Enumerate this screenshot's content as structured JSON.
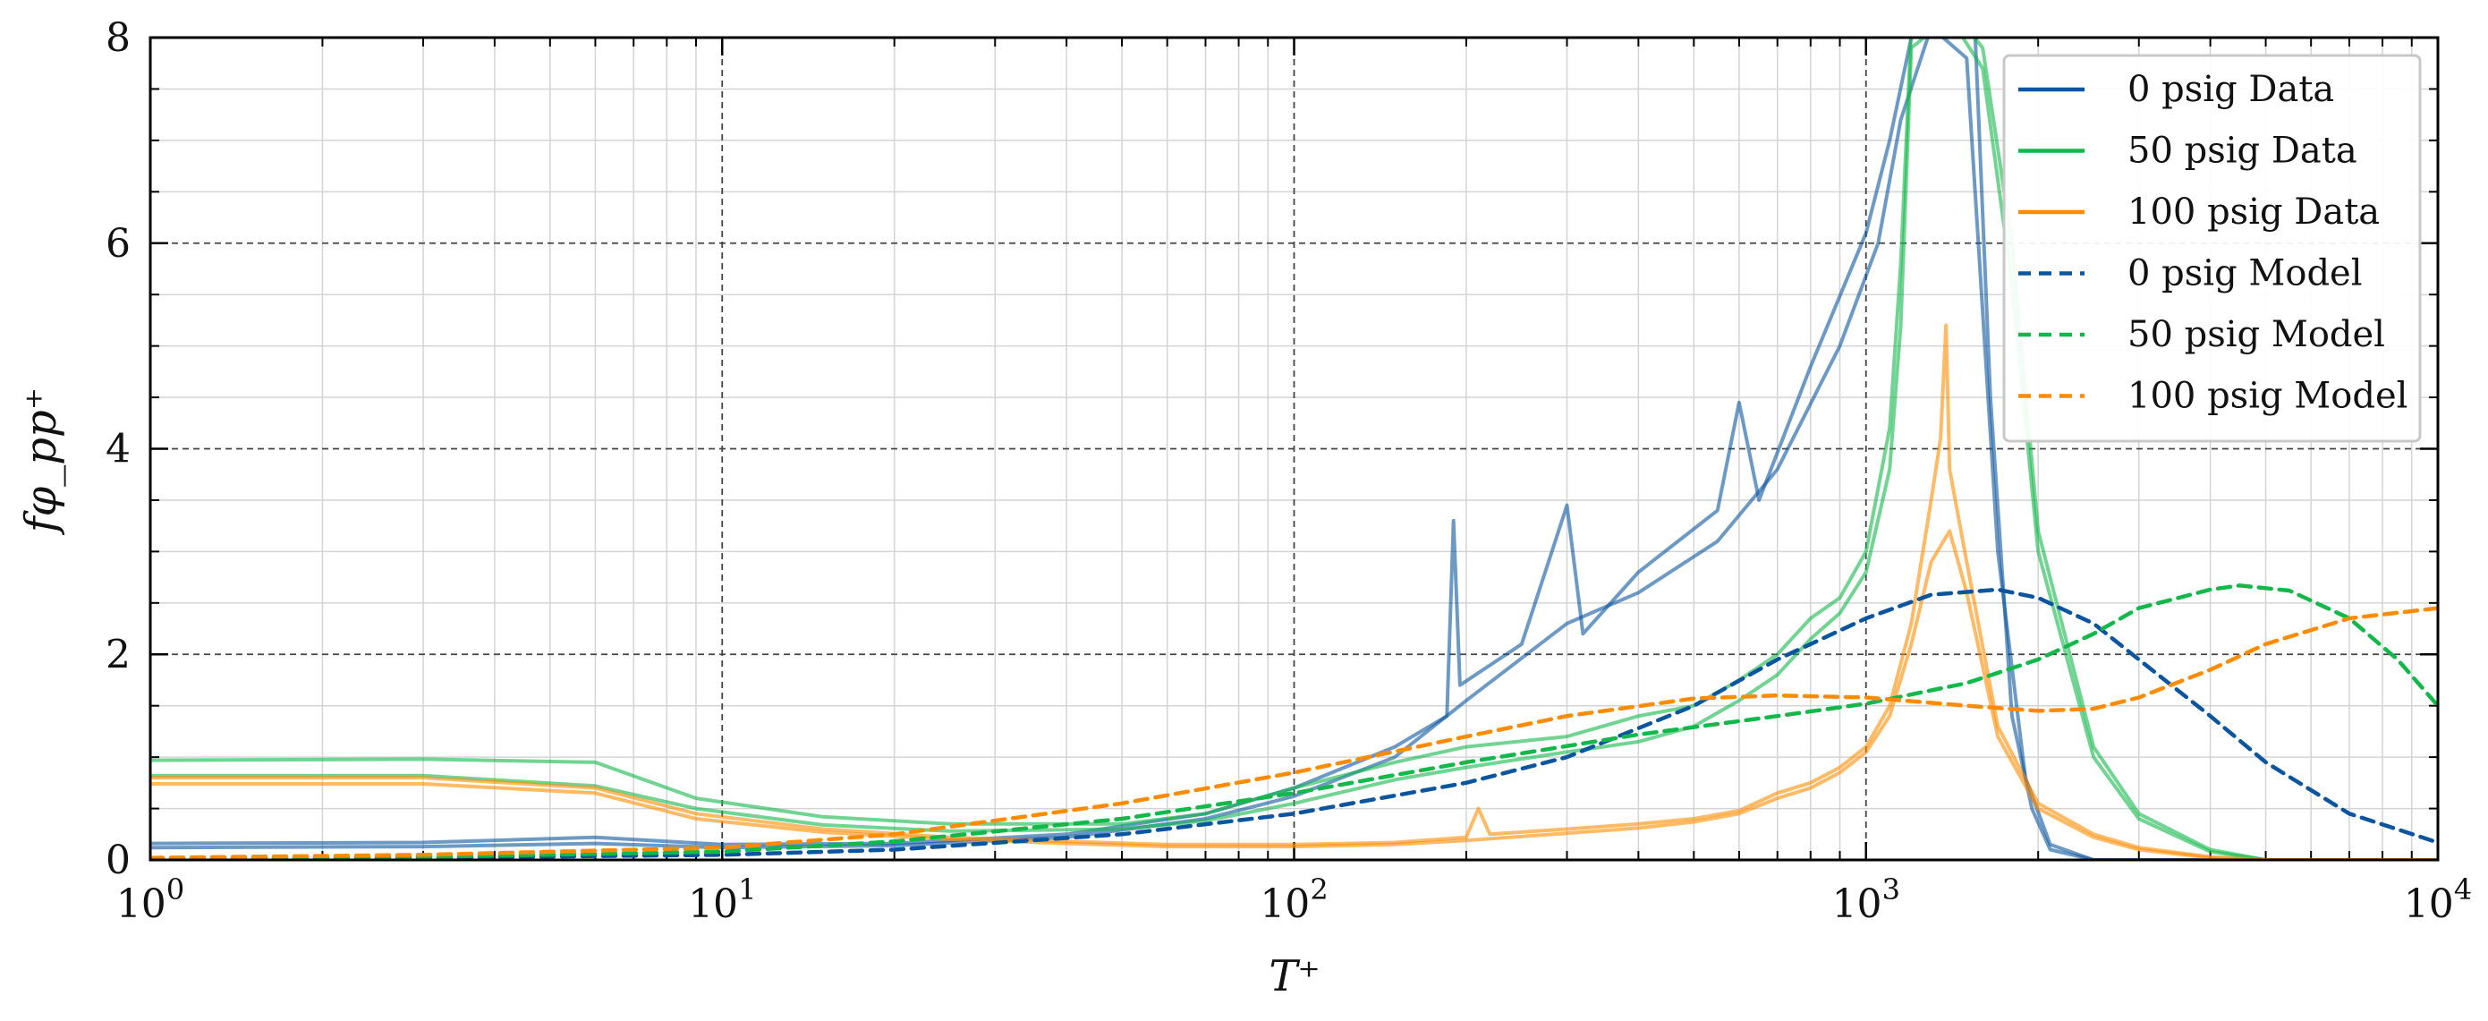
{
  "chart_data": {
    "type": "line",
    "xlabel": "T⁺",
    "ylabel": "fφ_pp⁺",
    "xscale": "log",
    "xlim": [
      1,
      10000
    ],
    "ylim": [
      0,
      8
    ],
    "grid": true,
    "legend_position": "top-right",
    "x_tick_labels": [
      {
        "value": 1,
        "base": "10",
        "exp": "0"
      },
      {
        "value": 10,
        "base": "10",
        "exp": "1"
      },
      {
        "value": 100,
        "base": "10",
        "exp": "2"
      },
      {
        "value": 1000,
        "base": "10",
        "exp": "3"
      },
      {
        "value": 10000,
        "base": "10",
        "exp": "4"
      }
    ],
    "y_ticks": [
      0,
      2,
      4,
      6,
      8
    ],
    "colors": {
      "psig0": "#0b559f",
      "psig50": "#12b84a",
      "psig100": "#ff8c00"
    },
    "series": [
      {
        "name": "0 psig Data",
        "color": "#0b559f",
        "style": "solid",
        "legend": true,
        "points": [
          [
            1,
            0.16
          ],
          [
            3,
            0.17
          ],
          [
            6,
            0.22
          ],
          [
            10,
            0.15
          ],
          [
            20,
            0.16
          ],
          [
            40,
            0.25
          ],
          [
            70,
            0.45
          ],
          [
            100,
            0.7
          ],
          [
            150,
            1.1
          ],
          [
            185,
            1.4
          ],
          [
            190,
            3.3
          ],
          [
            195,
            1.7
          ],
          [
            250,
            2.1
          ],
          [
            300,
            3.45
          ],
          [
            320,
            2.2
          ],
          [
            400,
            2.8
          ],
          [
            550,
            3.4
          ],
          [
            600,
            4.45
          ],
          [
            650,
            3.5
          ],
          [
            800,
            4.8
          ],
          [
            1000,
            6.1
          ],
          [
            1100,
            7.0
          ],
          [
            1200,
            8.0
          ],
          [
            1350,
            8.2
          ],
          [
            1550,
            8.1
          ],
          [
            1650,
            4.5
          ],
          [
            1800,
            1.4
          ],
          [
            1950,
            0.5
          ],
          [
            2100,
            0.1
          ],
          [
            2500,
            0.0
          ],
          [
            10000,
            0.0
          ]
        ]
      },
      {
        "name": "0 psig Data (repeat)",
        "color": "#0b559f",
        "style": "solid",
        "legend": false,
        "points": [
          [
            1,
            0.12
          ],
          [
            3,
            0.13
          ],
          [
            6,
            0.16
          ],
          [
            10,
            0.12
          ],
          [
            20,
            0.14
          ],
          [
            40,
            0.22
          ],
          [
            70,
            0.4
          ],
          [
            100,
            0.62
          ],
          [
            150,
            1.0
          ],
          [
            200,
            1.55
          ],
          [
            300,
            2.3
          ],
          [
            400,
            2.6
          ],
          [
            550,
            3.1
          ],
          [
            700,
            3.8
          ],
          [
            900,
            5.0
          ],
          [
            1050,
            6.0
          ],
          [
            1150,
            7.2
          ],
          [
            1300,
            8.1
          ],
          [
            1500,
            7.8
          ],
          [
            1700,
            3.0
          ],
          [
            1900,
            0.8
          ],
          [
            2100,
            0.15
          ],
          [
            2500,
            0.0
          ],
          [
            10000,
            0.0
          ]
        ]
      },
      {
        "name": "50 psig Data",
        "color": "#12b84a",
        "style": "solid",
        "legend": true,
        "points": [
          [
            1,
            0.97
          ],
          [
            3,
            0.98
          ],
          [
            6,
            0.95
          ],
          [
            9,
            0.6
          ],
          [
            15,
            0.42
          ],
          [
            25,
            0.35
          ],
          [
            50,
            0.35
          ],
          [
            70,
            0.45
          ],
          [
            100,
            0.7
          ],
          [
            150,
            0.95
          ],
          [
            200,
            1.1
          ],
          [
            300,
            1.2
          ],
          [
            400,
            1.4
          ],
          [
            500,
            1.5
          ],
          [
            600,
            1.75
          ],
          [
            700,
            2.0
          ],
          [
            800,
            2.35
          ],
          [
            900,
            2.55
          ],
          [
            1000,
            3.0
          ],
          [
            1100,
            4.2
          ],
          [
            1150,
            5.8
          ],
          [
            1200,
            8.1
          ],
          [
            1400,
            8.3
          ],
          [
            1600,
            7.9
          ],
          [
            1800,
            6.0
          ],
          [
            2000,
            3.2
          ],
          [
            2500,
            1.1
          ],
          [
            3000,
            0.45
          ],
          [
            4000,
            0.1
          ],
          [
            5000,
            0.0
          ],
          [
            10000,
            0.0
          ]
        ]
      },
      {
        "name": "50 psig Data (repeat)",
        "color": "#12b84a",
        "style": "solid",
        "legend": false,
        "points": [
          [
            1,
            0.82
          ],
          [
            3,
            0.82
          ],
          [
            6,
            0.72
          ],
          [
            9,
            0.5
          ],
          [
            15,
            0.34
          ],
          [
            25,
            0.28
          ],
          [
            50,
            0.3
          ],
          [
            70,
            0.38
          ],
          [
            100,
            0.55
          ],
          [
            150,
            0.78
          ],
          [
            200,
            0.9
          ],
          [
            300,
            1.05
          ],
          [
            400,
            1.15
          ],
          [
            500,
            1.3
          ],
          [
            600,
            1.55
          ],
          [
            700,
            1.8
          ],
          [
            800,
            2.15
          ],
          [
            900,
            2.4
          ],
          [
            1000,
            2.8
          ],
          [
            1100,
            3.8
          ],
          [
            1150,
            5.2
          ],
          [
            1200,
            7.9
          ],
          [
            1400,
            8.2
          ],
          [
            1600,
            7.7
          ],
          [
            1800,
            5.6
          ],
          [
            2000,
            3.0
          ],
          [
            2500,
            1.0
          ],
          [
            3000,
            0.4
          ],
          [
            4000,
            0.08
          ],
          [
            5000,
            0.0
          ],
          [
            10000,
            0.0
          ]
        ]
      },
      {
        "name": "100 psig Data",
        "color": "#ff8c00",
        "style": "solid",
        "legend": true,
        "points": [
          [
            1,
            0.8
          ],
          [
            3,
            0.8
          ],
          [
            6,
            0.7
          ],
          [
            9,
            0.45
          ],
          [
            15,
            0.3
          ],
          [
            25,
            0.22
          ],
          [
            40,
            0.18
          ],
          [
            60,
            0.15
          ],
          [
            100,
            0.15
          ],
          [
            150,
            0.17
          ],
          [
            200,
            0.22
          ],
          [
            210,
            0.5
          ],
          [
            220,
            0.25
          ],
          [
            300,
            0.3
          ],
          [
            400,
            0.35
          ],
          [
            500,
            0.4
          ],
          [
            600,
            0.48
          ],
          [
            700,
            0.65
          ],
          [
            800,
            0.75
          ],
          [
            900,
            0.9
          ],
          [
            1000,
            1.1
          ],
          [
            1100,
            1.5
          ],
          [
            1200,
            2.3
          ],
          [
            1300,
            3.5
          ],
          [
            1350,
            4.1
          ],
          [
            1380,
            5.2
          ],
          [
            1400,
            3.8
          ],
          [
            1500,
            2.9
          ],
          [
            1700,
            1.3
          ],
          [
            2000,
            0.55
          ],
          [
            2500,
            0.25
          ],
          [
            3000,
            0.12
          ],
          [
            4000,
            0.03
          ],
          [
            5000,
            0.0
          ],
          [
            10000,
            0.0
          ]
        ]
      },
      {
        "name": "100 psig Data (repeat)",
        "color": "#ff8c00",
        "style": "solid",
        "legend": false,
        "points": [
          [
            1,
            0.74
          ],
          [
            3,
            0.74
          ],
          [
            6,
            0.65
          ],
          [
            9,
            0.4
          ],
          [
            15,
            0.27
          ],
          [
            25,
            0.2
          ],
          [
            40,
            0.16
          ],
          [
            60,
            0.13
          ],
          [
            100,
            0.13
          ],
          [
            150,
            0.15
          ],
          [
            200,
            0.19
          ],
          [
            300,
            0.26
          ],
          [
            400,
            0.31
          ],
          [
            500,
            0.37
          ],
          [
            600,
            0.45
          ],
          [
            700,
            0.6
          ],
          [
            800,
            0.7
          ],
          [
            900,
            0.85
          ],
          [
            1000,
            1.05
          ],
          [
            1100,
            1.4
          ],
          [
            1200,
            2.1
          ],
          [
            1300,
            2.9
          ],
          [
            1400,
            3.2
          ],
          [
            1500,
            2.6
          ],
          [
            1700,
            1.2
          ],
          [
            2000,
            0.5
          ],
          [
            2500,
            0.22
          ],
          [
            3000,
            0.1
          ],
          [
            4000,
            0.02
          ],
          [
            5000,
            0.0
          ],
          [
            10000,
            0.0
          ]
        ]
      },
      {
        "name": "0 psig Model",
        "color": "#0b559f",
        "style": "dashed",
        "legend": true,
        "points": [
          [
            1,
            0.01
          ],
          [
            3,
            0.02
          ],
          [
            10,
            0.05
          ],
          [
            20,
            0.1
          ],
          [
            50,
            0.25
          ],
          [
            100,
            0.45
          ],
          [
            200,
            0.75
          ],
          [
            300,
            1.0
          ],
          [
            500,
            1.5
          ],
          [
            700,
            1.95
          ],
          [
            1000,
            2.35
          ],
          [
            1300,
            2.58
          ],
          [
            1700,
            2.63
          ],
          [
            2000,
            2.55
          ],
          [
            2500,
            2.3
          ],
          [
            3000,
            1.95
          ],
          [
            4000,
            1.4
          ],
          [
            5000,
            0.95
          ],
          [
            7000,
            0.45
          ],
          [
            10000,
            0.17
          ]
        ]
      },
      {
        "name": "50 psig Model",
        "color": "#12b84a",
        "style": "dashed",
        "legend": true,
        "points": [
          [
            1,
            0.02
          ],
          [
            3,
            0.03
          ],
          [
            10,
            0.08
          ],
          [
            20,
            0.18
          ],
          [
            50,
            0.4
          ],
          [
            100,
            0.65
          ],
          [
            200,
            0.95
          ],
          [
            400,
            1.22
          ],
          [
            700,
            1.4
          ],
          [
            1000,
            1.52
          ],
          [
            1500,
            1.72
          ],
          [
            2000,
            1.95
          ],
          [
            2500,
            2.2
          ],
          [
            3000,
            2.45
          ],
          [
            4000,
            2.63
          ],
          [
            4500,
            2.67
          ],
          [
            5500,
            2.62
          ],
          [
            7000,
            2.35
          ],
          [
            8500,
            1.95
          ],
          [
            10000,
            1.5
          ]
        ]
      },
      {
        "name": "100 psig Model",
        "color": "#ff8c00",
        "style": "dashed",
        "legend": true,
        "points": [
          [
            1,
            0.02
          ],
          [
            3,
            0.05
          ],
          [
            10,
            0.12
          ],
          [
            20,
            0.25
          ],
          [
            50,
            0.55
          ],
          [
            100,
            0.85
          ],
          [
            200,
            1.2
          ],
          [
            300,
            1.4
          ],
          [
            500,
            1.57
          ],
          [
            700,
            1.6
          ],
          [
            1000,
            1.58
          ],
          [
            1500,
            1.5
          ],
          [
            2000,
            1.45
          ],
          [
            2500,
            1.47
          ],
          [
            3000,
            1.58
          ],
          [
            4000,
            1.85
          ],
          [
            5000,
            2.1
          ],
          [
            7000,
            2.35
          ],
          [
            10000,
            2.45
          ]
        ]
      }
    ]
  }
}
